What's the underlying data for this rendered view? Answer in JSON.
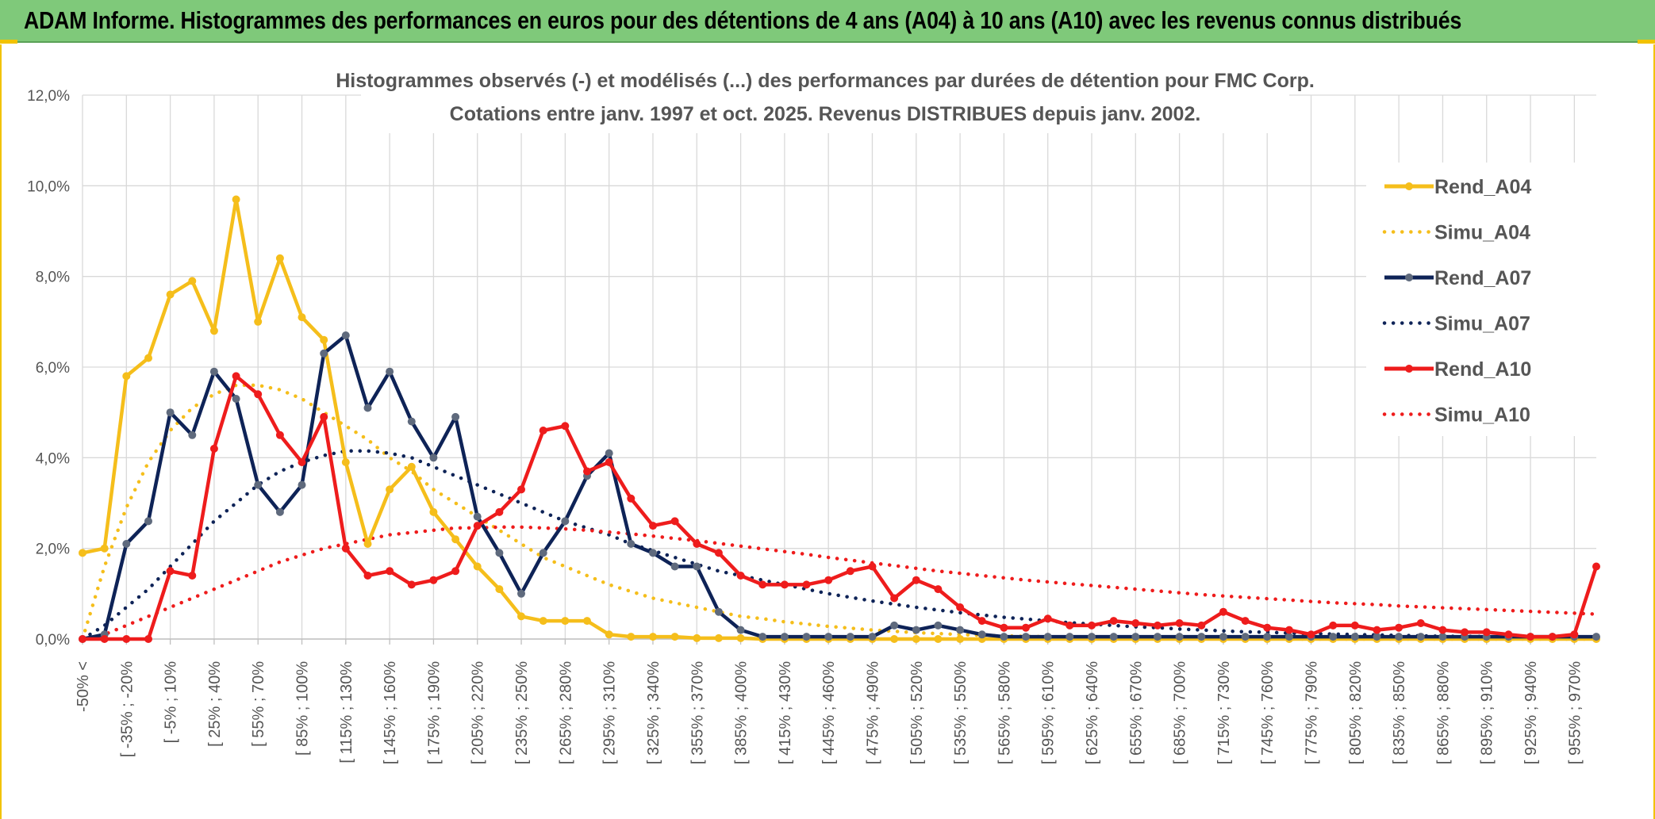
{
  "banner": {
    "title": "ADAM Informe. Histogrammes des performances en euros pour des détentions de 4 ans (A04) à 10 ans (A10) avec les revenus connus distribués"
  },
  "chart_data": {
    "type": "line",
    "title": "Histogrammes observés (-) et modélisés (...) des performances par durées de détention pour FMC Corp.",
    "subtitle": "Cotations entre janv. 1997 et oct. 2025. Revenus DISTRIBUES depuis janv. 2002.",
    "ylim": [
      0,
      12
    ],
    "yticks": [
      "0,0%",
      "2,0%",
      "4,0%",
      "6,0%",
      "8,0%",
      "10,0%",
      "12,0%"
    ],
    "x_tick_labels": [
      "-50% <",
      "[ -35% ; -20%",
      "[ -5% ; 10%",
      "[ 25% ; 40%",
      "[ 55% ; 70%",
      "[ 85% ; 100%",
      "[ 115% ; 130%",
      "[ 145% ; 160%",
      "[ 175% ; 190%",
      "[ 205% ; 220%",
      "[ 235% ; 250%",
      "[ 265% ; 280%",
      "[ 295% ; 310%",
      "[ 325% ; 340%",
      "[ 355% ; 370%",
      "[ 385% ; 400%",
      "[ 415% ; 430%",
      "[ 445% ; 460%",
      "[ 475% ; 490%",
      "[ 505% ; 520%",
      "[ 535% ; 550%",
      "[ 565% ; 580%",
      "[ 595% ; 610%",
      "[ 625% ; 640%",
      "[ 655% ; 670%",
      "[ 685% ; 700%",
      "[ 715% ; 730%",
      "[ 745% ; 760%",
      "[ 775% ; 790%",
      "[ 805% ; 820%",
      "[ 835% ; 850%",
      "[ 865% ; 880%",
      "[ 895% ; 910%",
      "[ 925% ; 940%",
      "[ 955% ; 970%"
    ],
    "n_points": 70,
    "series": [
      {
        "name": "Rend_A04",
        "color": "#f5be1b",
        "style": "solid",
        "values": [
          1.9,
          2.0,
          5.8,
          6.2,
          7.6,
          7.9,
          6.8,
          9.7,
          7.0,
          8.4,
          7.1,
          6.6,
          3.9,
          2.1,
          3.3,
          3.8,
          2.8,
          2.2,
          1.6,
          1.1,
          0.5,
          0.4,
          0.4,
          0.4,
          0.1,
          0.05,
          0.05,
          0.05,
          0.02,
          0.02,
          0.02,
          0.0,
          0.0,
          0.0,
          0.0,
          0.0,
          0.0,
          0.0,
          0.0,
          0.0,
          0.0,
          0.0,
          0.0,
          0.0,
          0.0,
          0.0,
          0.0,
          0.0,
          0.0,
          0.0,
          0.0,
          0.0,
          0.0,
          0.0,
          0.0,
          0.0,
          0.0,
          0.0,
          0.0,
          0.0,
          0.0,
          0.0,
          0.0,
          0.0,
          0.0,
          0.0,
          0.0,
          0.0,
          0.0,
          0.0
        ]
      },
      {
        "name": "Simu_A04",
        "color": "#f5be1b",
        "style": "dotted",
        "values": [
          0.0,
          1.6,
          2.9,
          3.9,
          4.6,
          5.1,
          5.4,
          5.6,
          5.6,
          5.5,
          5.3,
          5.0,
          4.7,
          4.4,
          4.0,
          3.7,
          3.3,
          3.0,
          2.7,
          2.4,
          2.1,
          1.8,
          1.6,
          1.4,
          1.2,
          1.05,
          0.9,
          0.8,
          0.7,
          0.6,
          0.5,
          0.45,
          0.38,
          0.33,
          0.28,
          0.24,
          0.2,
          0.17,
          0.14,
          0.12,
          0.1,
          0.08,
          0.07,
          0.06,
          0.05,
          0.04,
          0.03,
          0.03,
          0.02,
          0.02,
          0.02,
          0.01,
          0.01,
          0.01,
          0.01,
          0.0,
          0.0,
          0.0,
          0.0,
          0.0,
          0.0,
          0.0,
          0.0,
          0.0,
          0.0,
          0.0,
          0.0,
          0.0,
          0.0,
          0.0
        ]
      },
      {
        "name": "Rend_A07",
        "color": "#0e2357",
        "style": "solid",
        "values": [
          0.0,
          0.1,
          2.1,
          2.6,
          5.0,
          4.5,
          5.9,
          5.3,
          3.4,
          2.8,
          3.4,
          6.3,
          6.7,
          5.1,
          5.9,
          4.8,
          4.0,
          4.9,
          2.7,
          1.9,
          1.0,
          1.9,
          2.6,
          3.6,
          4.1,
          2.1,
          1.9,
          1.6,
          1.6,
          0.6,
          0.2,
          0.05,
          0.05,
          0.05,
          0.05,
          0.05,
          0.05,
          0.3,
          0.2,
          0.3,
          0.2,
          0.1,
          0.05,
          0.05,
          0.05,
          0.05,
          0.05,
          0.05,
          0.05,
          0.05,
          0.05,
          0.05,
          0.05,
          0.05,
          0.05,
          0.05,
          0.05,
          0.05,
          0.05,
          0.05,
          0.05,
          0.05,
          0.05,
          0.05,
          0.05,
          0.05,
          0.05,
          0.05,
          0.05,
          0.05
        ]
      },
      {
        "name": "Simu_A07",
        "color": "#0e2357",
        "style": "dotted",
        "values": [
          0.0,
          0.3,
          0.7,
          1.1,
          1.6,
          2.1,
          2.6,
          3.0,
          3.4,
          3.7,
          3.9,
          4.05,
          4.15,
          4.15,
          4.1,
          4.0,
          3.8,
          3.6,
          3.4,
          3.2,
          3.0,
          2.8,
          2.6,
          2.45,
          2.3,
          2.1,
          1.95,
          1.8,
          1.65,
          1.5,
          1.4,
          1.3,
          1.2,
          1.1,
          1.0,
          0.92,
          0.84,
          0.77,
          0.7,
          0.64,
          0.58,
          0.53,
          0.48,
          0.44,
          0.4,
          0.36,
          0.33,
          0.3,
          0.27,
          0.25,
          0.22,
          0.2,
          0.18,
          0.16,
          0.15,
          0.13,
          0.12,
          0.11,
          0.1,
          0.09,
          0.08,
          0.07,
          0.06,
          0.06,
          0.05,
          0.05,
          0.04,
          0.04,
          0.03,
          0.03
        ]
      },
      {
        "name": "Rend_A10",
        "color": "#ee1c1c",
        "style": "solid",
        "values": [
          0.0,
          0.0,
          0.0,
          0.0,
          1.5,
          1.4,
          4.2,
          5.8,
          5.4,
          4.5,
          3.9,
          4.9,
          2.0,
          1.4,
          1.5,
          1.2,
          1.3,
          1.5,
          2.5,
          2.8,
          3.3,
          4.6,
          4.7,
          3.7,
          3.9,
          3.1,
          2.5,
          2.6,
          2.1,
          1.9,
          1.4,
          1.2,
          1.2,
          1.2,
          1.3,
          1.5,
          1.6,
          0.9,
          1.3,
          1.1,
          0.7,
          0.4,
          0.25,
          0.25,
          0.45,
          0.3,
          0.3,
          0.4,
          0.35,
          0.3,
          0.35,
          0.3,
          0.6,
          0.4,
          0.25,
          0.2,
          0.1,
          0.3,
          0.3,
          0.2,
          0.25,
          0.35,
          0.2,
          0.15,
          0.15,
          0.1,
          0.05,
          0.05,
          0.1,
          1.6
        ]
      },
      {
        "name": "Simu_A10",
        "color": "#ee1c1c",
        "style": "dotted",
        "values": [
          0.0,
          0.1,
          0.3,
          0.5,
          0.7,
          0.9,
          1.1,
          1.3,
          1.5,
          1.7,
          1.85,
          2.0,
          2.1,
          2.2,
          2.3,
          2.35,
          2.4,
          2.45,
          2.45,
          2.47,
          2.47,
          2.45,
          2.43,
          2.4,
          2.36,
          2.32,
          2.27,
          2.22,
          2.17,
          2.11,
          2.05,
          1.99,
          1.93,
          1.87,
          1.8,
          1.74,
          1.68,
          1.62,
          1.56,
          1.5,
          1.45,
          1.4,
          1.35,
          1.3,
          1.26,
          1.22,
          1.18,
          1.14,
          1.1,
          1.06,
          1.02,
          0.98,
          0.95,
          0.92,
          0.89,
          0.86,
          0.83,
          0.8,
          0.78,
          0.76,
          0.73,
          0.71,
          0.69,
          0.67,
          0.65,
          0.63,
          0.61,
          0.59,
          0.57,
          0.55
        ]
      }
    ]
  }
}
